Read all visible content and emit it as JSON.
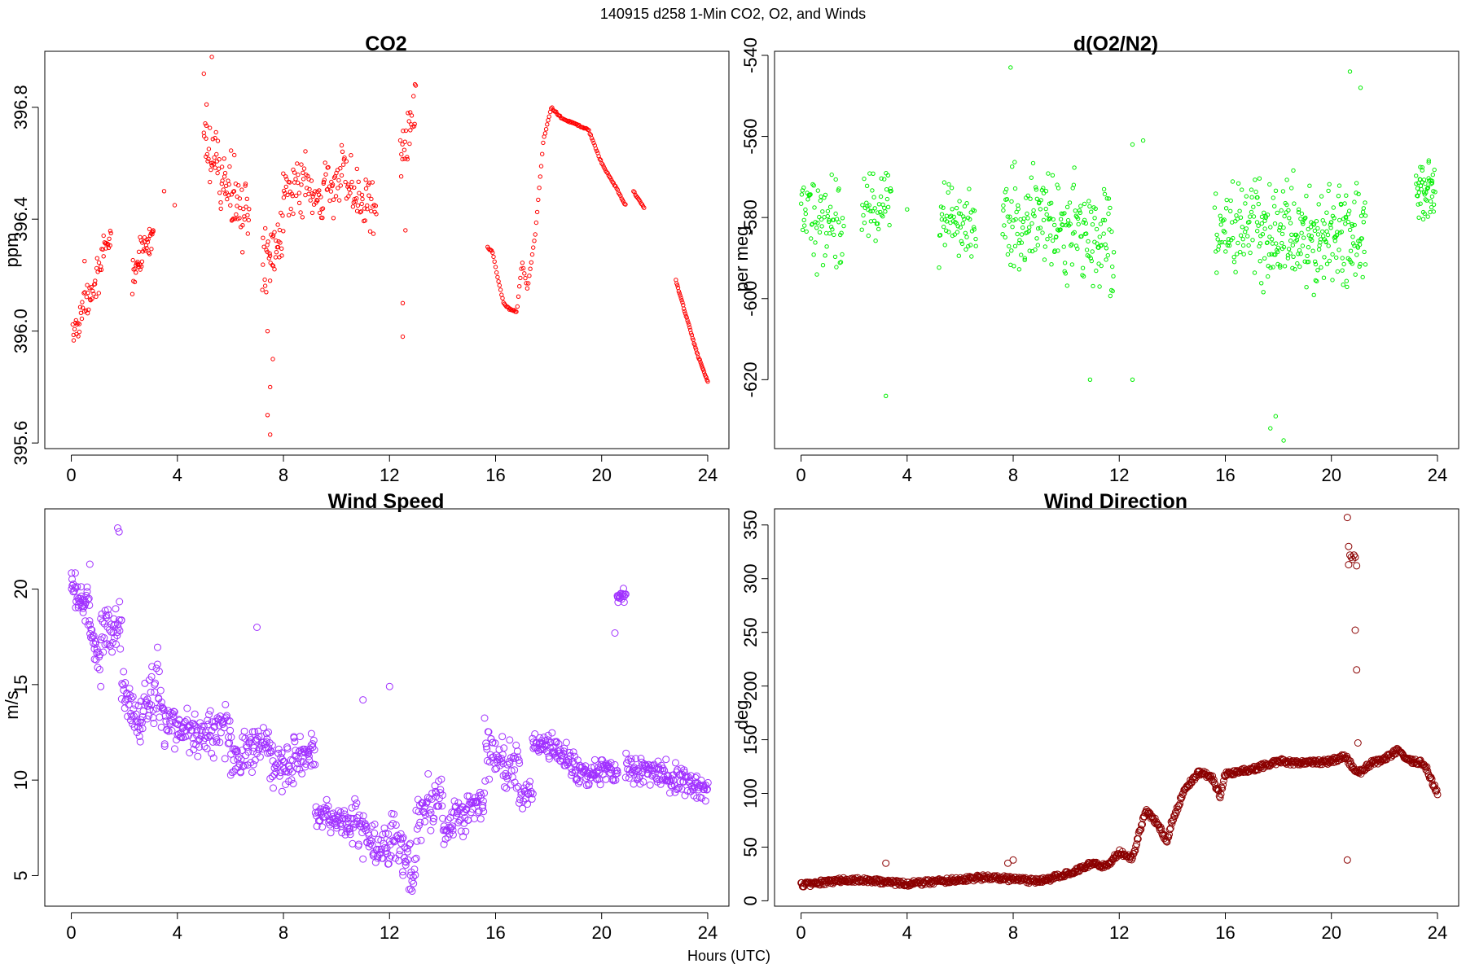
{
  "figure": {
    "suptitle": "140915   d258   1-Min CO2, O2, and Winds",
    "xlabel": "Hours (UTC)"
  },
  "chart_data": [
    {
      "id": "co2",
      "type": "scatter",
      "title": "CO2",
      "ylabel": "ppm",
      "xlim": [
        -1,
        24.8
      ],
      "ylim": [
        395.58,
        397.0
      ],
      "xticks": [
        0,
        4,
        8,
        12,
        16,
        20,
        24
      ],
      "yticks": [
        395.6,
        396.0,
        396.4,
        396.8
      ],
      "ytick_labels": [
        "395.6",
        "396.0",
        "396.4",
        "396.8"
      ],
      "color": "#ff0000",
      "marker_radius": 2.2,
      "series": [
        {
          "segments": [
            {
              "x0": 0.05,
              "x1": 1.5,
              "y0": 395.98,
              "y1": 396.33,
              "noise": 0.07,
              "n": 60
            },
            {
              "x0": 2.3,
              "x1": 3.1,
              "y0": 396.2,
              "y1": 396.37,
              "noise": 0.06,
              "n": 40
            },
            {
              "x0": 5.0,
              "x1": 6.7,
              "y0": 396.65,
              "y1": 396.4,
              "noise": 0.13,
              "n": 80
            },
            {
              "x0": 7.2,
              "x1": 8.0,
              "y0": 396.2,
              "y1": 396.4,
              "noise": 0.13,
              "n": 40
            },
            {
              "x0": 8.0,
              "x1": 9.5,
              "y0": 396.55,
              "y1": 396.45,
              "noise": 0.12,
              "n": 60
            },
            {
              "x0": 9.5,
              "x1": 11.5,
              "y0": 396.55,
              "y1": 396.45,
              "noise": 0.13,
              "n": 80
            },
            {
              "x0": 12.4,
              "x1": 13.0,
              "y0": 396.6,
              "y1": 396.8,
              "noise": 0.12,
              "n": 25
            }
          ]
        },
        {
          "line": {
            "x": [
              15.7,
              15.9,
              16.1,
              16.3,
              16.5,
              16.8,
              17.0,
              17.2,
              17.5,
              17.8,
              18.1,
              18.5,
              19.0,
              19.5,
              20.0,
              20.5,
              20.9
            ],
            "y": [
              396.3,
              396.28,
              396.18,
              396.1,
              396.08,
              396.07,
              396.25,
              396.15,
              396.35,
              396.68,
              396.8,
              396.76,
              396.74,
              396.72,
              396.6,
              396.52,
              396.45
            ],
            "n": 140
          }
        },
        {
          "line": {
            "x": [
              21.2,
              21.6
            ],
            "y": [
              396.5,
              396.44
            ],
            "n": 12
          }
        },
        {
          "line": {
            "x": [
              22.8,
              23.2,
              23.6,
              24.0
            ],
            "y": [
              396.18,
              396.05,
              395.92,
              395.82
            ],
            "n": 45
          }
        },
        {
          "points": {
            "x": [
              0.5,
              2.6,
              3.5,
              3.9,
              5.0,
              5.1,
              5.3,
              7.4,
              7.4,
              7.5,
              7.5,
              7.6,
              12.5,
              12.5,
              12.6
            ],
            "y": [
              396.25,
              396.22,
              396.5,
              396.45,
              396.92,
              396.81,
              396.98,
              396.0,
              395.7,
              395.63,
              395.8,
              395.9,
              396.1,
              395.98,
              396.36
            ]
          }
        }
      ]
    },
    {
      "id": "o2",
      "type": "scatter",
      "title": "d(O2/N2)",
      "ylabel": "per meg",
      "xlim": [
        -1,
        24.8
      ],
      "ylim": [
        -637,
        -539
      ],
      "xticks": [
        0,
        4,
        8,
        12,
        16,
        20,
        24
      ],
      "yticks": [
        -620,
        -600,
        -580,
        -560,
        -540
      ],
      "ytick_labels": [
        "-620",
        "-600",
        "-580",
        "-560",
        "-540"
      ],
      "color": "#00ee00",
      "marker_radius": 2.2,
      "series": [
        {
          "segments": [
            {
              "x0": 0.0,
              "x1": 1.6,
              "y0": -580,
              "y1": -580,
              "noise": 12,
              "n": 70
            },
            {
              "x0": 2.3,
              "x1": 3.4,
              "y0": -576,
              "y1": -578,
              "noise": 10,
              "n": 45
            },
            {
              "x0": 5.2,
              "x1": 6.6,
              "y0": -582,
              "y1": -580,
              "noise": 11,
              "n": 60
            },
            {
              "x0": 7.6,
              "x1": 11.8,
              "y0": -580,
              "y1": -586,
              "noise": 14,
              "n": 200
            },
            {
              "x0": 15.6,
              "x1": 17.2,
              "y0": -584,
              "y1": -580,
              "noise": 11,
              "n": 70
            },
            {
              "x0": 17.2,
              "x1": 21.3,
              "y0": -584,
              "y1": -584,
              "noise": 14,
              "n": 230
            },
            {
              "x0": 23.2,
              "x1": 23.9,
              "y0": -573,
              "y1": -573,
              "noise": 9,
              "n": 50
            }
          ]
        },
        {
          "points": {
            "x": [
              4.0,
              3.2,
              7.9,
              10.9,
              12.5,
              12.5,
              12.9,
              17.7,
              17.9,
              20.7,
              21.1,
              18.2
            ],
            "y": [
              -578,
              -624,
              -543,
              -620,
              -620,
              -562,
              -561,
              -632,
              -629,
              -544,
              -548,
              -635
            ]
          }
        }
      ]
    },
    {
      "id": "wspd",
      "type": "scatter",
      "title": "Wind Speed",
      "ylabel": "m/s",
      "xlim": [
        -1,
        24.8
      ],
      "ylim": [
        3.4,
        24.2
      ],
      "xticks": [
        0,
        4,
        8,
        12,
        16,
        20,
        24
      ],
      "yticks": [
        5,
        10,
        15,
        20
      ],
      "ytick_labels": [
        "5",
        "10",
        "15",
        "20"
      ],
      "color": "#a030ff",
      "marker_radius": 4,
      "series": [
        {
          "segments": [
            {
              "x0": 0.0,
              "x1": 0.7,
              "y0": 20.0,
              "y1": 19.0,
              "noise": 1.0,
              "n": 40
            },
            {
              "x0": 0.7,
              "x1": 1.1,
              "y0": 17.8,
              "y1": 16.0,
              "noise": 1.1,
              "n": 22
            },
            {
              "x0": 1.1,
              "x1": 1.9,
              "y0": 17.5,
              "y1": 18.3,
              "noise": 1.3,
              "n": 40
            },
            {
              "x0": 1.9,
              "x1": 2.6,
              "y0": 15.0,
              "y1": 12.5,
              "noise": 1.2,
              "n": 35
            },
            {
              "x0": 2.6,
              "x1": 3.4,
              "y0": 13.5,
              "y1": 15.0,
              "noise": 1.8,
              "n": 40
            },
            {
              "x0": 3.4,
              "x1": 4.6,
              "y0": 13.0,
              "y1": 12.5,
              "noise": 1.2,
              "n": 55
            },
            {
              "x0": 4.6,
              "x1": 6.0,
              "y0": 12.3,
              "y1": 12.8,
              "noise": 1.4,
              "n": 65
            },
            {
              "x0": 6.0,
              "x1": 7.5,
              "y0": 11.0,
              "y1": 12.0,
              "noise": 1.2,
              "n": 70
            },
            {
              "x0": 7.5,
              "x1": 9.2,
              "y0": 10.5,
              "y1": 11.5,
              "noise": 1.5,
              "n": 80
            },
            {
              "x0": 9.2,
              "x1": 10.5,
              "y0": 8.2,
              "y1": 7.8,
              "noise": 0.8,
              "n": 60
            },
            {
              "x0": 10.5,
              "x1": 12.0,
              "y0": 8.0,
              "y1": 6.0,
              "noise": 1.5,
              "n": 70
            },
            {
              "x0": 12.0,
              "x1": 13.0,
              "y0": 7.5,
              "y1": 5.0,
              "noise": 1.6,
              "n": 45
            },
            {
              "x0": 13.0,
              "x1": 14.0,
              "y0": 8.0,
              "y1": 9.5,
              "noise": 1.5,
              "n": 45
            },
            {
              "x0": 14.0,
              "x1": 15.6,
              "y0": 7.5,
              "y1": 9.0,
              "noise": 1.0,
              "n": 75
            },
            {
              "x0": 15.6,
              "x1": 16.9,
              "y0": 11.5,
              "y1": 10.5,
              "noise": 1.4,
              "n": 60
            },
            {
              "x0": 16.9,
              "x1": 17.4,
              "y0": 9.0,
              "y1": 9.5,
              "noise": 0.8,
              "n": 20
            },
            {
              "x0": 17.4,
              "x1": 19.0,
              "y0": 12.0,
              "y1": 11.0,
              "noise": 0.8,
              "n": 75
            },
            {
              "x0": 19.0,
              "x1": 20.6,
              "y0": 10.3,
              "y1": 10.5,
              "noise": 0.8,
              "n": 75
            },
            {
              "x0": 20.6,
              "x1": 20.9,
              "y0": 19.5,
              "y1": 19.8,
              "noise": 0.6,
              "n": 18
            },
            {
              "x0": 20.9,
              "x1": 24.0,
              "y0": 10.8,
              "y1": 9.5,
              "noise": 0.8,
              "n": 140
            }
          ]
        },
        {
          "points": {
            "x": [
              1.75,
              1.8,
              7.0,
              11.0,
              12.0,
              12.5,
              12.8,
              0.7,
              20.5
            ],
            "y": [
              23.2,
              23.0,
              18.0,
              14.2,
              14.9,
              5.2,
              4.3,
              21.3,
              17.7
            ]
          }
        }
      ]
    },
    {
      "id": "wdir",
      "type": "scatter",
      "title": "Wind Direction",
      "ylabel": "deg",
      "xlim": [
        -1,
        24.8
      ],
      "ylim": [
        -5,
        365
      ],
      "xticks": [
        0,
        4,
        8,
        12,
        16,
        20,
        24
      ],
      "yticks": [
        0,
        50,
        100,
        150,
        200,
        250,
        300,
        350
      ],
      "ytick_labels": [
        "0",
        "50",
        "100",
        "150",
        "200",
        "250",
        "300",
        "350"
      ],
      "color": "#8b0000",
      "marker_radius": 4,
      "series": [
        {
          "line": {
            "x": [
              0.0,
              2.0,
              3.0,
              4.0,
              5.0,
              6.0,
              7.0,
              8.0,
              9.0,
              10.0,
              11.0,
              11.5,
              12.0,
              12.5,
              13.0,
              13.5,
              13.8,
              14.0,
              14.5,
              15.0,
              15.5,
              15.8,
              16.0,
              17.0,
              18.0,
              19.0,
              20.0,
              20.5,
              21.0,
              21.5,
              22.0,
              22.5,
              23.0,
              23.5,
              24.0
            ],
            "y": [
              15,
              20,
              18,
              16,
              18,
              20,
              22,
              20,
              18,
              25,
              35,
              32,
              45,
              40,
              85,
              70,
              55,
              75,
              105,
              120,
              115,
              98,
              118,
              122,
              130,
              128,
              130,
              135,
              118,
              128,
              132,
              140,
              130,
              128,
              100
            ],
            "n": 900,
            "noise": 5
          }
        },
        {
          "points": {
            "x": [
              20.6,
              20.65,
              20.7,
              20.75,
              20.8,
              20.85,
              20.9,
              20.95,
              20.6,
              20.9,
              20.95,
              21.0,
              20.65,
              3.2,
              7.8,
              8.0
            ],
            "y": [
              357,
              330,
              322,
              320,
              318,
              322,
              320,
              312,
              38,
              252,
              215,
              147,
              313,
              35,
              35,
              38
            ]
          }
        }
      ]
    }
  ]
}
